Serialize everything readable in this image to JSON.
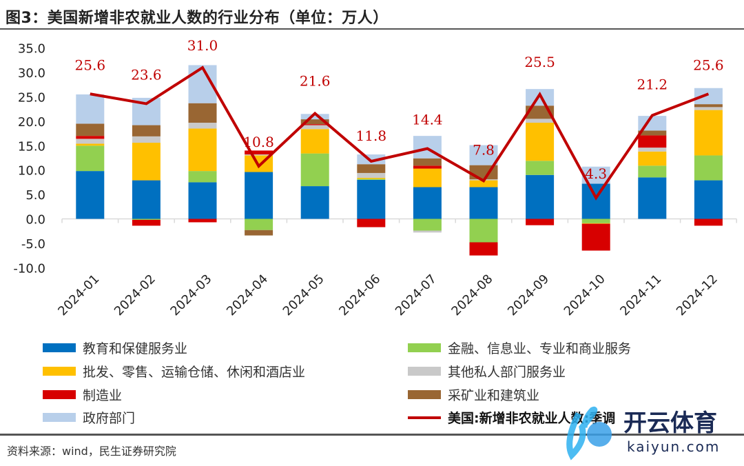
{
  "title": "图3：美国新增非农就业人数的行业分布（单位：万人）",
  "source": "资料来源：wind，民生证券研究院",
  "watermark": {
    "text": "开云体育",
    "url_text": "kaiyun.com"
  },
  "chart_data": {
    "type": "bar",
    "stacked": true,
    "categories": [
      "2024-01",
      "2024-02",
      "2024-03",
      "2024-04",
      "2024-05",
      "2024-06",
      "2024-07",
      "2024-08",
      "2024-09",
      "2024-10",
      "2024-11",
      "2024-12"
    ],
    "ylim": [
      -10,
      35
    ],
    "yticks": [
      "35.0",
      "30.0",
      "25.0",
      "20.0",
      "15.0",
      "10.0",
      "5.0",
      "0.0",
      "-5.0",
      "-10.0"
    ],
    "ytick_values": [
      35,
      30,
      25,
      20,
      15,
      10,
      5,
      0,
      -5,
      -10
    ],
    "grid": false,
    "legend_position": "bottom",
    "series": [
      {
        "name": "教育和保健服务业",
        "color": "#0070C0",
        "values": [
          9.8,
          7.9,
          7.5,
          9.6,
          6.7,
          8.0,
          6.5,
          6.5,
          9.0,
          7.2,
          8.5,
          7.9
        ]
      },
      {
        "name": "金融、信息业、专业和商业服务",
        "color": "#92D050",
        "values": [
          5.2,
          -0.2,
          2.3,
          -2.3,
          6.7,
          0.2,
          -2.4,
          -4.8,
          2.9,
          -0.9,
          2.4,
          5.1
        ]
      },
      {
        "name": "批发、零售、运输仓储、休闲和酒店业",
        "color": "#FFC000",
        "values": [
          0.4,
          7.7,
          8.7,
          3.4,
          5.0,
          0.2,
          3.8,
          1.4,
          7.8,
          -0.1,
          2.9,
          9.3
        ]
      },
      {
        "name": "其他私人部门服务业",
        "color": "#C9C9C9",
        "values": [
          1.0,
          1.3,
          1.2,
          0.2,
          0.8,
          1.0,
          -0.4,
          0.2,
          0.8,
          0,
          0.8,
          0.6
        ]
      },
      {
        "name": "制造业",
        "color": "#D70000",
        "values": [
          0.6,
          -1.2,
          -0.7,
          0.8,
          0.2,
          -1.7,
          0.6,
          -2.7,
          -1.3,
          -5.5,
          2.5,
          -1.4
        ]
      },
      {
        "name": "采矿业和建筑业",
        "color": "#996633",
        "values": [
          2.5,
          2.3,
          4.0,
          -1.1,
          1.0,
          1.8,
          1.5,
          2.9,
          2.7,
          0,
          1.0,
          0.6
        ]
      },
      {
        "name": "政府部门",
        "color": "#B8CFEA",
        "values": [
          6.0,
          5.6,
          7.8,
          0,
          1.1,
          2.0,
          4.6,
          4.1,
          3.4,
          3.5,
          3.0,
          3.3
        ]
      }
    ],
    "line": {
      "name": "美国:新增非农就业人数:季调",
      "color": "#C00000",
      "values": [
        25.6,
        23.6,
        31.0,
        10.8,
        21.6,
        11.8,
        14.4,
        7.8,
        25.5,
        4.3,
        21.2,
        25.6
      ],
      "labels": [
        "25.6",
        "23.6",
        "31.0",
        "10.8",
        "21.6",
        "11.8",
        "14.4",
        "7.8",
        "25.5",
        "4.3",
        "21.2",
        "25.6"
      ]
    }
  }
}
